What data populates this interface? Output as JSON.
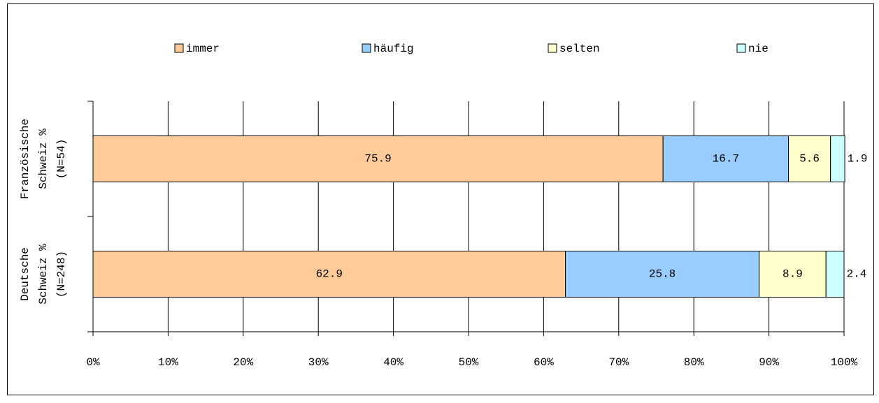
{
  "chart_data": {
    "type": "stacked_barh",
    "categories": [
      [
        "Französische",
        "Schweiz %",
        "(N=54)"
      ],
      [
        "Deutsche",
        "Schweiz %",
        "(N=248)"
      ]
    ],
    "series": [
      {
        "name": "immer",
        "color": "#FFCC99",
        "values": [
          75.9,
          62.9
        ]
      },
      {
        "name": "häufig",
        "color": "#99CCFF",
        "values": [
          16.7,
          25.8
        ]
      },
      {
        "name": "selten",
        "color": "#FFFFCC",
        "values": [
          5.6,
          8.9
        ]
      },
      {
        "name": "nie",
        "color": "#CCFFFF",
        "values": [
          1.9,
          2.4
        ]
      }
    ],
    "xlim": [
      0,
      100
    ],
    "xticks": [
      {
        "value": 0,
        "label": "0%"
      },
      {
        "value": 10,
        "label": "10%"
      },
      {
        "value": 20,
        "label": "20%"
      },
      {
        "value": 30,
        "label": "30%"
      },
      {
        "value": 40,
        "label": "40%"
      },
      {
        "value": 50,
        "label": "50%"
      },
      {
        "value": 60,
        "label": "60%"
      },
      {
        "value": 70,
        "label": "70%"
      },
      {
        "value": 80,
        "label": "80%"
      },
      {
        "value": 90,
        "label": "90%"
      },
      {
        "value": 100,
        "label": "100%"
      }
    ],
    "grid": true,
    "legend": "top"
  }
}
